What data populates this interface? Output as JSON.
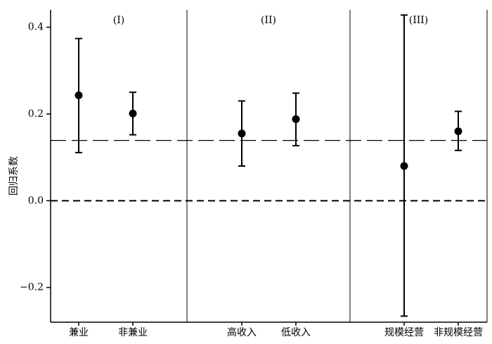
{
  "chart_data": {
    "type": "errorbar",
    "y_label": "回归系数",
    "groups": [
      {
        "label": "(I)",
        "categories": [
          "兼业",
          "非兼业"
        ],
        "values": [
          0.243,
          0.201
        ],
        "lower": [
          0.111,
          0.152
        ],
        "upper": [
          0.374,
          0.25
        ]
      },
      {
        "label": "(II)",
        "categories": [
          "高收入",
          "低收入"
        ],
        "values": [
          0.155,
          0.188
        ],
        "lower": [
          0.08,
          0.127
        ],
        "upper": [
          0.23,
          0.248
        ]
      },
      {
        "label": "(III)",
        "categories": [
          "规模经营",
          "非规模经营"
        ],
        "values": [
          0.08,
          0.16
        ],
        "lower": [
          -0.266,
          0.116
        ],
        "upper": [
          0.428,
          0.206
        ]
      }
    ],
    "color": "#000000",
    "hlines": [
      {
        "value": 0.139,
        "style": "long-dash"
      },
      {
        "value": 0,
        "style": "dash"
      }
    ],
    "ylim": [
      -0.28,
      0.44
    ],
    "yticks": [
      {
        "value": -0.2,
        "label": "−0.2"
      },
      {
        "value": 0,
        "label": "0.0"
      },
      0.2,
      0.4
    ]
  }
}
